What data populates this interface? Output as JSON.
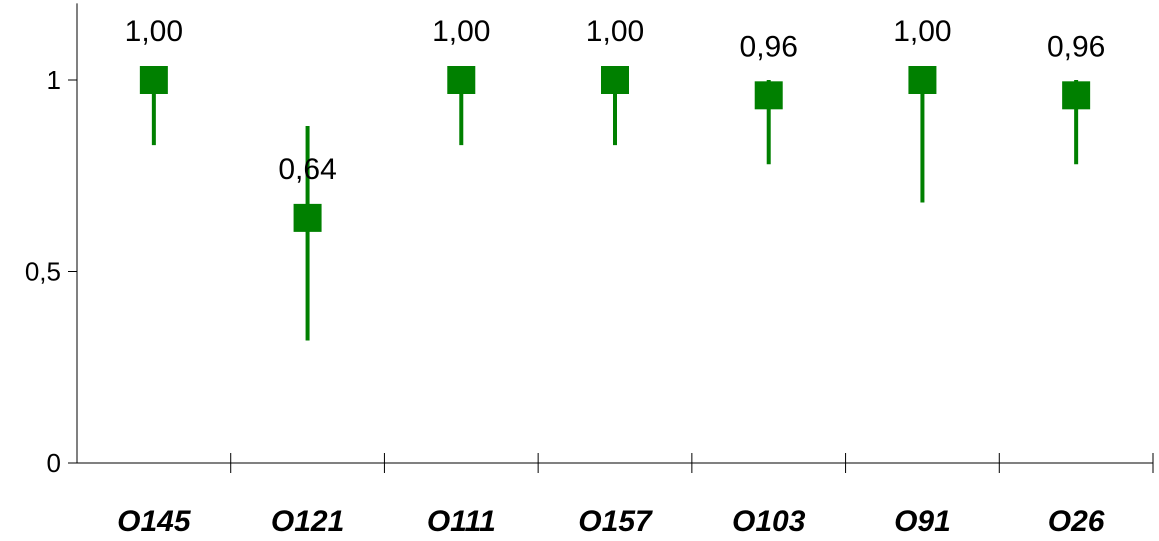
{
  "chart_data": {
    "type": "scatter",
    "title": "",
    "xlabel": "",
    "ylabel": "",
    "categories": [
      "O145",
      "O121",
      "O111",
      "O157",
      "O103",
      "O91",
      "O26"
    ],
    "values": [
      1.0,
      0.64,
      1.0,
      1.0,
      0.96,
      1.0,
      0.96
    ],
    "value_labels": [
      "1,00",
      "0,64",
      "1,00",
      "1,00",
      "0,96",
      "1,00",
      "0,96"
    ],
    "error_low": [
      0.83,
      0.32,
      0.83,
      0.83,
      0.78,
      0.68,
      0.78
    ],
    "error_high": [
      1.0,
      0.88,
      1.0,
      1.0,
      1.0,
      1.0,
      1.0
    ],
    "ylim": [
      0,
      1.2
    ],
    "yticks": [
      0,
      0.5,
      1
    ],
    "ytick_labels": [
      "0",
      "0,5",
      "1"
    ],
    "grid": false,
    "legend": false,
    "marker": "square",
    "color": "#008000"
  }
}
